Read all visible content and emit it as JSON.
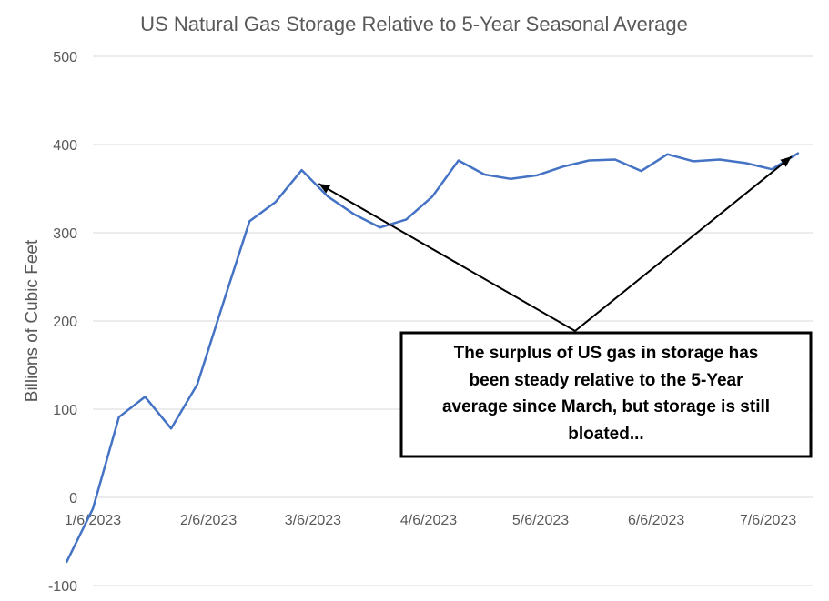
{
  "chart_data": {
    "type": "line",
    "title": "US Natural Gas Storage Relative to 5-Year Seasonal Average",
    "ylabel": "Billions of Cubic Feet",
    "xlabel": "",
    "ylim": [
      -100,
      500
    ],
    "yticks": [
      -100,
      0,
      100,
      200,
      300,
      400,
      500
    ],
    "xticks": [
      "1/6/2023",
      "2/6/2023",
      "3/6/2023",
      "4/6/2023",
      "5/6/2023",
      "6/6/2023",
      "7/6/2023"
    ],
    "grid": true,
    "legend": "none",
    "series": [
      {
        "color": "#4472c4",
        "x": [
          "12/30/2022",
          "1/6/2023",
          "1/13/2023",
          "1/20/2023",
          "1/27/2023",
          "2/3/2023",
          "2/10/2023",
          "2/17/2023",
          "2/24/2023",
          "3/3/2023",
          "3/10/2023",
          "3/17/2023",
          "3/24/2023",
          "3/31/2023",
          "4/7/2023",
          "4/14/2023",
          "4/21/2023",
          "4/28/2023",
          "5/5/2023",
          "5/12/2023",
          "5/19/2023",
          "5/26/2023",
          "6/2/2023",
          "6/9/2023",
          "6/16/2023",
          "6/23/2023",
          "6/30/2023",
          "7/7/2023",
          "7/14/2023"
        ],
        "values": [
          -73,
          -13,
          91,
          114,
          78,
          128,
          221,
          313,
          335,
          371,
          341,
          321,
          306,
          315,
          341,
          382,
          366,
          361,
          365,
          375,
          382,
          383,
          370,
          389,
          381,
          383,
          379,
          372,
          390
        ]
      }
    ],
    "annotation": {
      "text_lines": [
        "The surplus of US gas in storage has",
        "been steady relative to the 5-Year",
        "average since March, but storage is still",
        "bloated..."
      ],
      "arrow_targets": [
        "3/10/2023",
        "7/14/2023"
      ]
    }
  }
}
